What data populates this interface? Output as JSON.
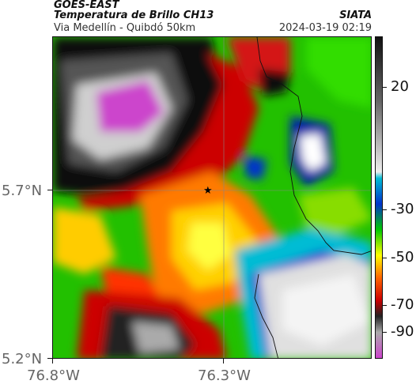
{
  "header": {
    "satellite": "GOES-EAST",
    "product": "Temperatura de Brillo CH13",
    "region": "Via Medellín - Quibdó 50km",
    "organization": "SIATA",
    "datetime": "2024-03-19 02:19"
  },
  "map": {
    "lat_ticks": [
      "5.7°N",
      "5.2°N"
    ],
    "lon_ticks": [
      "76.8°W",
      "76.3°W"
    ],
    "marker": "star-marker"
  },
  "colorbar": {
    "labels": [
      "20",
      "-30",
      "-50",
      "-70",
      "-90"
    ],
    "colors": [
      "#111111",
      "#666666",
      "#dddddd",
      "#00bcd4",
      "#0033cc",
      "#00c800",
      "#ffff00",
      "#ff6600",
      "#cc0000",
      "#222222",
      "#aaaaaa",
      "#cc44cc"
    ]
  }
}
